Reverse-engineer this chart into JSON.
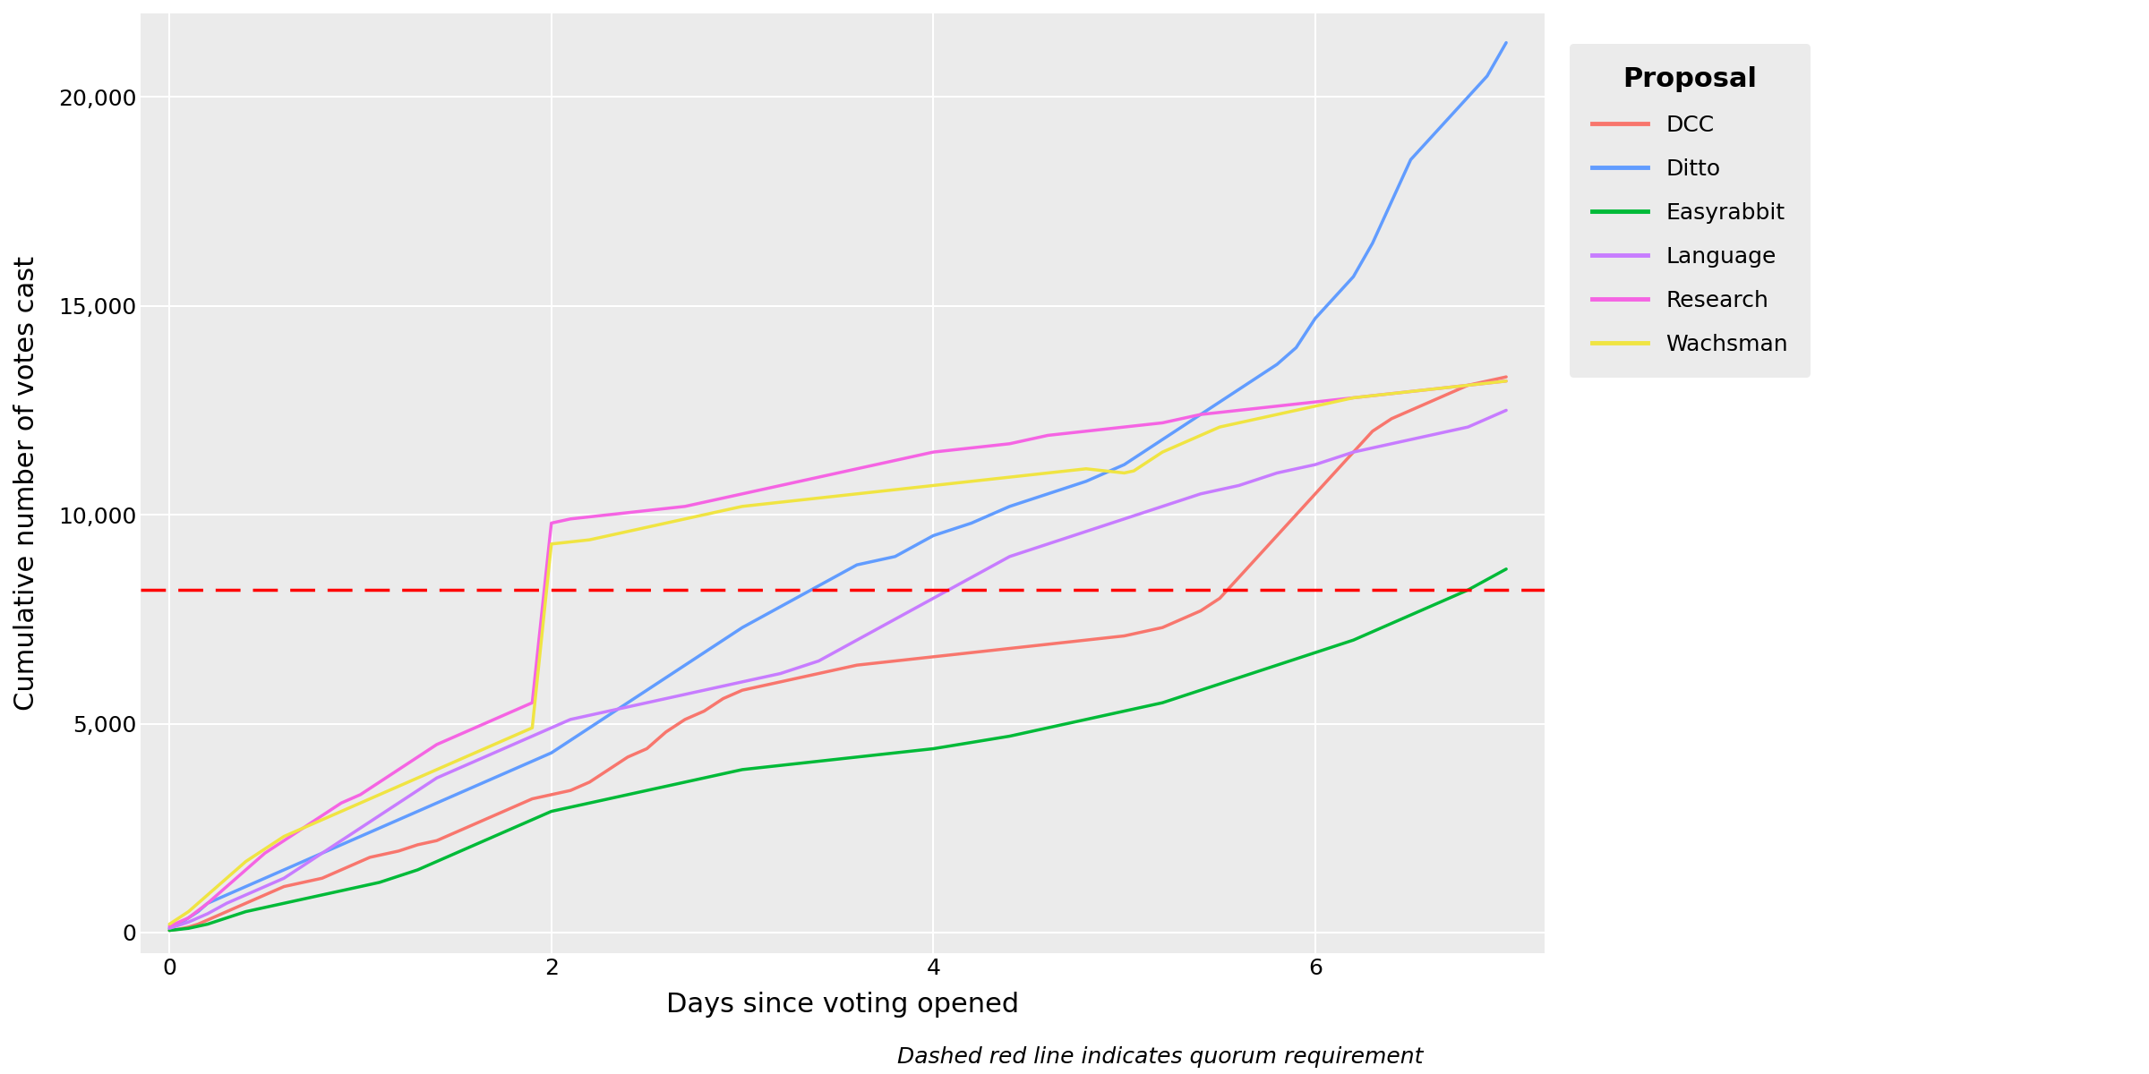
{
  "xlabel": "Days since voting opened",
  "ylabel": "Cumulative number of votes cast",
  "subtitle": "Dashed red line indicates quorum requirement",
  "quorum": 8193,
  "xlim": [
    -0.15,
    7.2
  ],
  "ylim": [
    -500,
    22000
  ],
  "yticks": [
    0,
    5000,
    10000,
    15000,
    20000
  ],
  "xticks": [
    0,
    2,
    4,
    6
  ],
  "background_color": "#EBEBEB",
  "grid_color": "#FFFFFF",
  "proposals": {
    "DCC": {
      "color": "#F8766D",
      "linewidth": 2.5,
      "x": [
        0.0,
        0.05,
        0.1,
        0.15,
        0.2,
        0.25,
        0.3,
        0.35,
        0.4,
        0.45,
        0.5,
        0.55,
        0.6,
        0.65,
        0.7,
        0.75,
        0.8,
        0.85,
        0.9,
        0.95,
        1.0,
        1.05,
        1.1,
        1.15,
        1.2,
        1.3,
        1.4,
        1.5,
        1.6,
        1.7,
        1.8,
        1.9,
        2.0,
        2.1,
        2.2,
        2.3,
        2.4,
        2.5,
        2.6,
        2.7,
        2.8,
        2.9,
        3.0,
        3.1,
        3.2,
        3.3,
        3.4,
        3.5,
        3.6,
        3.7,
        3.8,
        3.9,
        4.0,
        4.1,
        4.2,
        4.3,
        4.4,
        4.5,
        4.6,
        4.7,
        4.8,
        4.9,
        5.0,
        5.05,
        5.1,
        5.2,
        5.3,
        5.4,
        5.5,
        5.6,
        5.7,
        5.8,
        5.9,
        6.0,
        6.1,
        6.2,
        6.3,
        6.4,
        6.5,
        6.6,
        6.7,
        6.8,
        6.9,
        7.0
      ],
      "y": [
        50,
        80,
        130,
        200,
        300,
        400,
        500,
        600,
        700,
        800,
        900,
        1000,
        1100,
        1150,
        1200,
        1250,
        1300,
        1400,
        1500,
        1600,
        1700,
        1800,
        1850,
        1900,
        1950,
        2100,
        2200,
        2400,
        2600,
        2800,
        3000,
        3200,
        3300,
        3400,
        3600,
        3900,
        4200,
        4400,
        4800,
        5100,
        5300,
        5600,
        5800,
        5900,
        6000,
        6100,
        6200,
        6300,
        6400,
        6450,
        6500,
        6550,
        6600,
        6650,
        6700,
        6750,
        6800,
        6850,
        6900,
        6950,
        7000,
        7050,
        7100,
        7150,
        7200,
        7300,
        7500,
        7700,
        8000,
        8500,
        9000,
        9500,
        10000,
        10500,
        11000,
        11500,
        12000,
        12300,
        12500,
        12700,
        12900,
        13100,
        13200,
        13300
      ]
    },
    "Ditto": {
      "color": "#619CFF",
      "linewidth": 2.5,
      "x": [
        0.0,
        0.05,
        0.1,
        0.15,
        0.2,
        0.3,
        0.4,
        0.5,
        0.6,
        0.7,
        0.8,
        0.9,
        1.0,
        1.1,
        1.2,
        1.3,
        1.4,
        1.5,
        1.6,
        1.7,
        1.8,
        1.9,
        2.0,
        2.1,
        2.2,
        2.3,
        2.4,
        2.5,
        2.6,
        2.7,
        2.8,
        2.9,
        3.0,
        3.2,
        3.4,
        3.6,
        3.8,
        4.0,
        4.2,
        4.4,
        4.6,
        4.8,
        5.0,
        5.1,
        5.2,
        5.3,
        5.4,
        5.5,
        5.6,
        5.7,
        5.8,
        5.9,
        6.0,
        6.1,
        6.2,
        6.3,
        6.4,
        6.5,
        6.6,
        6.7,
        6.8,
        6.9,
        7.0
      ],
      "y": [
        100,
        200,
        350,
        500,
        700,
        900,
        1100,
        1300,
        1500,
        1700,
        1900,
        2100,
        2300,
        2500,
        2700,
        2900,
        3100,
        3300,
        3500,
        3700,
        3900,
        4100,
        4300,
        4600,
        4900,
        5200,
        5500,
        5800,
        6100,
        6400,
        6700,
        7000,
        7300,
        7800,
        8300,
        8800,
        9000,
        9500,
        9800,
        10200,
        10500,
        10800,
        11200,
        11500,
        11800,
        12100,
        12400,
        12700,
        13000,
        13300,
        13600,
        14000,
        14700,
        15200,
        15700,
        16500,
        17500,
        18500,
        19000,
        19500,
        20000,
        20500,
        21300
      ]
    },
    "Easyrabbit": {
      "color": "#00BA38",
      "linewidth": 2.5,
      "x": [
        0.0,
        0.1,
        0.2,
        0.3,
        0.4,
        0.5,
        0.6,
        0.7,
        0.8,
        0.9,
        1.0,
        1.1,
        1.2,
        1.3,
        1.4,
        1.5,
        1.6,
        1.7,
        1.8,
        1.9,
        2.0,
        2.1,
        2.2,
        2.3,
        2.4,
        2.5,
        2.6,
        2.7,
        2.8,
        2.9,
        3.0,
        3.2,
        3.4,
        3.6,
        3.8,
        4.0,
        4.2,
        4.4,
        4.6,
        4.8,
        5.0,
        5.2,
        5.4,
        5.6,
        5.8,
        6.0,
        6.2,
        6.4,
        6.6,
        6.8,
        7.0
      ],
      "y": [
        50,
        100,
        200,
        350,
        500,
        600,
        700,
        800,
        900,
        1000,
        1100,
        1200,
        1350,
        1500,
        1700,
        1900,
        2100,
        2300,
        2500,
        2700,
        2900,
        3000,
        3100,
        3200,
        3300,
        3400,
        3500,
        3600,
        3700,
        3800,
        3900,
        4000,
        4100,
        4200,
        4300,
        4400,
        4550,
        4700,
        4900,
        5100,
        5300,
        5500,
        5800,
        6100,
        6400,
        6700,
        7000,
        7400,
        7800,
        8200,
        8700
      ]
    },
    "Language": {
      "color": "#C77CFF",
      "linewidth": 2.5,
      "x": [
        0.0,
        0.1,
        0.2,
        0.3,
        0.4,
        0.5,
        0.6,
        0.7,
        0.8,
        0.9,
        1.0,
        1.1,
        1.2,
        1.3,
        1.4,
        1.5,
        1.6,
        1.7,
        1.8,
        1.9,
        2.0,
        2.1,
        2.2,
        2.3,
        2.4,
        2.5,
        2.6,
        2.7,
        2.8,
        2.9,
        3.0,
        3.2,
        3.4,
        3.6,
        3.8,
        4.0,
        4.2,
        4.4,
        4.6,
        4.8,
        5.0,
        5.2,
        5.4,
        5.6,
        5.8,
        6.0,
        6.2,
        6.4,
        6.6,
        6.8,
        7.0
      ],
      "y": [
        100,
        250,
        450,
        700,
        900,
        1100,
        1300,
        1600,
        1900,
        2200,
        2500,
        2800,
        3100,
        3400,
        3700,
        3900,
        4100,
        4300,
        4500,
        4700,
        4900,
        5100,
        5200,
        5300,
        5400,
        5500,
        5600,
        5700,
        5800,
        5900,
        6000,
        6200,
        6500,
        7000,
        7500,
        8000,
        8500,
        9000,
        9300,
        9600,
        9900,
        10200,
        10500,
        10700,
        11000,
        11200,
        11500,
        11700,
        11900,
        12100,
        12500
      ]
    },
    "Research": {
      "color": "#F564E3",
      "linewidth": 2.5,
      "x": [
        0.0,
        0.1,
        0.2,
        0.3,
        0.4,
        0.5,
        0.6,
        0.7,
        0.8,
        0.9,
        1.0,
        1.1,
        1.2,
        1.3,
        1.4,
        1.5,
        1.6,
        1.7,
        1.8,
        1.9,
        2.0,
        2.1,
        2.2,
        2.3,
        2.4,
        2.5,
        2.6,
        2.7,
        2.8,
        2.9,
        3.0,
        3.2,
        3.4,
        3.6,
        3.8,
        4.0,
        4.2,
        4.4,
        4.6,
        4.8,
        5.0,
        5.2,
        5.4,
        5.6,
        5.8,
        6.0,
        6.2,
        6.4,
        6.6,
        6.8,
        7.0
      ],
      "y": [
        150,
        350,
        700,
        1100,
        1500,
        1900,
        2200,
        2500,
        2800,
        3100,
        3300,
        3600,
        3900,
        4200,
        4500,
        4700,
        4900,
        5100,
        5300,
        5500,
        9800,
        9900,
        9950,
        10000,
        10050,
        10100,
        10150,
        10200,
        10300,
        10400,
        10500,
        10700,
        10900,
        11100,
        11300,
        11500,
        11600,
        11700,
        11900,
        12000,
        12100,
        12200,
        12400,
        12500,
        12600,
        12700,
        12800,
        12900,
        13000,
        13100,
        13200
      ]
    },
    "Wachsman": {
      "color": "#F0E442",
      "linewidth": 2.5,
      "x": [
        0.0,
        0.1,
        0.2,
        0.3,
        0.4,
        0.5,
        0.6,
        0.7,
        0.8,
        0.9,
        1.0,
        1.1,
        1.2,
        1.3,
        1.4,
        1.5,
        1.6,
        1.7,
        1.8,
        1.9,
        2.0,
        2.1,
        2.2,
        2.3,
        2.4,
        2.5,
        2.6,
        2.7,
        2.8,
        2.9,
        3.0,
        3.2,
        3.4,
        3.6,
        3.8,
        4.0,
        4.2,
        4.4,
        4.6,
        4.8,
        5.0,
        5.05,
        5.1,
        5.2,
        5.3,
        5.4,
        5.5,
        5.6,
        5.7,
        5.8,
        5.9,
        6.0,
        6.2,
        6.4,
        6.6,
        6.8,
        7.0
      ],
      "y": [
        200,
        500,
        900,
        1300,
        1700,
        2000,
        2300,
        2500,
        2700,
        2900,
        3100,
        3300,
        3500,
        3700,
        3900,
        4100,
        4300,
        4500,
        4700,
        4900,
        9300,
        9350,
        9400,
        9500,
        9600,
        9700,
        9800,
        9900,
        10000,
        10100,
        10200,
        10300,
        10400,
        10500,
        10600,
        10700,
        10800,
        10900,
        11000,
        11100,
        11000,
        11050,
        11200,
        11500,
        11700,
        11900,
        12100,
        12200,
        12300,
        12400,
        12500,
        12600,
        12800,
        12900,
        13000,
        13100,
        13200
      ]
    }
  },
  "legend_title": "Proposal",
  "legend_entries": [
    "DCC",
    "Ditto",
    "Easyrabbit",
    "Language",
    "Research",
    "Wachsman"
  ],
  "legend_colors": [
    "#F8766D",
    "#619CFF",
    "#00BA38",
    "#C77CFF",
    "#F564E3",
    "#F0E442"
  ]
}
